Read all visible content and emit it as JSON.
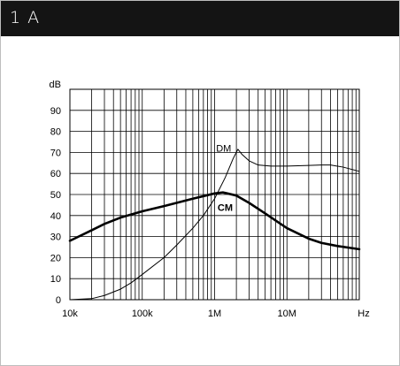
{
  "panel": {
    "title": "1 A"
  },
  "chart_data": {
    "type": "line",
    "x_scale": "log",
    "xlim": [
      10000,
      100000000
    ],
    "ylim": [
      0,
      100
    ],
    "ylabel": "dB",
    "xlabel": "Hz",
    "grid": true,
    "y_ticks": [
      0,
      10,
      20,
      30,
      40,
      50,
      60,
      70,
      80,
      90
    ],
    "x_ticks": [
      {
        "value": 10000,
        "label": "10k"
      },
      {
        "value": 100000,
        "label": "100k"
      },
      {
        "value": 1000000,
        "label": "1M"
      },
      {
        "value": 10000000,
        "label": "10M"
      }
    ],
    "series": [
      {
        "name": "DM",
        "style": "thin",
        "points": [
          [
            10000,
            0
          ],
          [
            20000,
            0.5
          ],
          [
            30000,
            2
          ],
          [
            50000,
            5
          ],
          [
            70000,
            8
          ],
          [
            100000,
            12
          ],
          [
            200000,
            20
          ],
          [
            300000,
            26
          ],
          [
            500000,
            34
          ],
          [
            700000,
            40
          ],
          [
            1000000,
            48
          ],
          [
            1400000,
            58
          ],
          [
            1800000,
            67
          ],
          [
            2100000,
            71.5
          ],
          [
            2400000,
            69
          ],
          [
            3000000,
            66
          ],
          [
            4000000,
            64
          ],
          [
            6000000,
            63.5
          ],
          [
            10000000,
            63.5
          ],
          [
            20000000,
            63.8
          ],
          [
            30000000,
            64
          ],
          [
            40000000,
            64
          ],
          [
            60000000,
            63
          ],
          [
            100000000,
            61
          ]
        ]
      },
      {
        "name": "CM",
        "style": "bold",
        "points": [
          [
            10000,
            28
          ],
          [
            20000,
            33
          ],
          [
            30000,
            36
          ],
          [
            50000,
            39
          ],
          [
            100000,
            42
          ],
          [
            200000,
            44.5
          ],
          [
            500000,
            48
          ],
          [
            1000000,
            50.5
          ],
          [
            1300000,
            51
          ],
          [
            2000000,
            49.5
          ],
          [
            3000000,
            46
          ],
          [
            5000000,
            41
          ],
          [
            10000000,
            34
          ],
          [
            20000000,
            29
          ],
          [
            30000000,
            27
          ],
          [
            50000000,
            25.5
          ],
          [
            100000000,
            24
          ]
        ]
      }
    ]
  }
}
